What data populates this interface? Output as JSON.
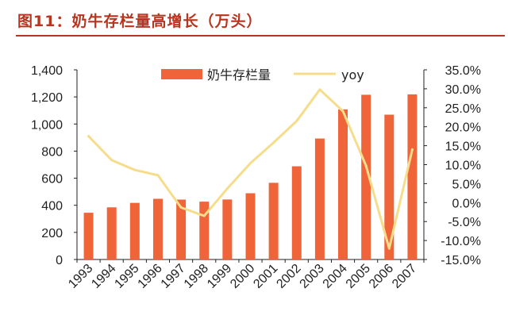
{
  "figure": {
    "label": "图11：奶牛存栏量高增长（万头）"
  },
  "colors": {
    "title": "#b7341f",
    "bar": "#f0643a",
    "line": "#f5dd8c",
    "axis": "#222222"
  },
  "chart_data": {
    "type": "bar+line",
    "categories": [
      "1993",
      "1994",
      "1995",
      "1996",
      "1997",
      "1998",
      "1999",
      "2000",
      "2001",
      "2002",
      "2003",
      "2004",
      "2005",
      "2006",
      "2007"
    ],
    "series": [
      {
        "name": "奶牛存栏量",
        "type": "bar",
        "axis": "left",
        "values": [
          345,
          385,
          418,
          448,
          442,
          427,
          443,
          489,
          566,
          688,
          893,
          1108,
          1216,
          1069,
          1219
        ]
      },
      {
        "name": "yoy",
        "type": "line",
        "axis": "right",
        "values": [
          17.5,
          11.2,
          8.6,
          7.2,
          -1.3,
          -3.5,
          3.7,
          10.4,
          15.8,
          21.5,
          29.8,
          24.1,
          9.7,
          -12.1,
          14.0
        ]
      }
    ],
    "y_left": {
      "lim": [
        0,
        1400
      ],
      "ticks": [
        0,
        200,
        400,
        600,
        800,
        1000,
        1200,
        1400
      ],
      "tick_labels": [
        "0",
        "200",
        "400",
        "600",
        "800",
        "1,000",
        "1,200",
        "1,400"
      ]
    },
    "y_right": {
      "lim": [
        -15,
        35
      ],
      "ticks": [
        -15,
        -10,
        -5,
        0,
        5,
        10,
        15,
        20,
        25,
        30,
        35
      ],
      "tick_labels": [
        "-15.0%",
        "-10.0%",
        "-5.0%",
        "0.0%",
        "5.0%",
        "10.0%",
        "15.0%",
        "20.0%",
        "25.0%",
        "30.0%",
        "35.0%"
      ]
    },
    "grid": false,
    "legend": "top"
  }
}
